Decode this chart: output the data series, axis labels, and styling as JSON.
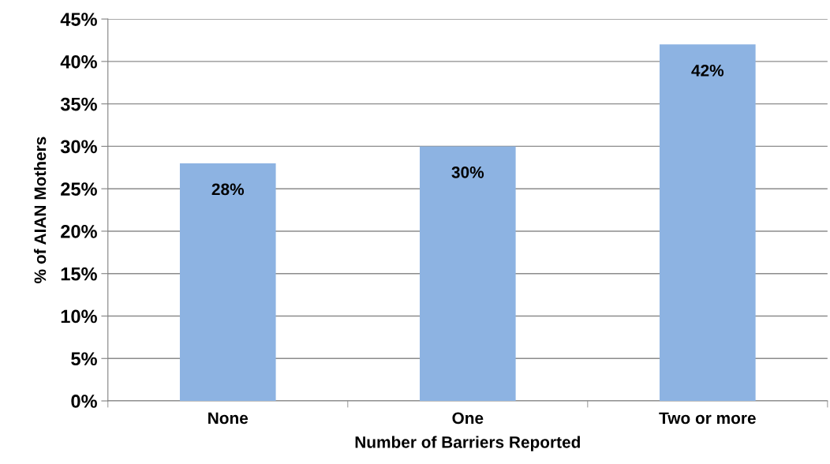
{
  "chart_data": {
    "type": "bar",
    "xlabel": "Number of Barriers Reported",
    "ylabel": "% of AIAN Mothers",
    "categories": [
      "None",
      "One",
      "Two or more"
    ],
    "values": [
      28,
      30,
      42
    ],
    "value_labels": [
      "28%",
      "30%",
      "42%"
    ],
    "color": "#8db3e2",
    "ylim": [
      0,
      45
    ],
    "yticks": [
      {
        "value": 0,
        "label": "0%"
      },
      {
        "value": 5,
        "label": "5%"
      },
      {
        "value": 10,
        "label": "10%"
      },
      {
        "value": 15,
        "label": "15%"
      },
      {
        "value": 20,
        "label": "20%"
      },
      {
        "value": 25,
        "label": "25%"
      },
      {
        "value": 30,
        "label": "30%"
      },
      {
        "value": 35,
        "label": "35%"
      },
      {
        "value": 40,
        "label": "40%"
      },
      {
        "value": 45,
        "label": "45%"
      }
    ],
    "grid": "y",
    "legend": false
  }
}
